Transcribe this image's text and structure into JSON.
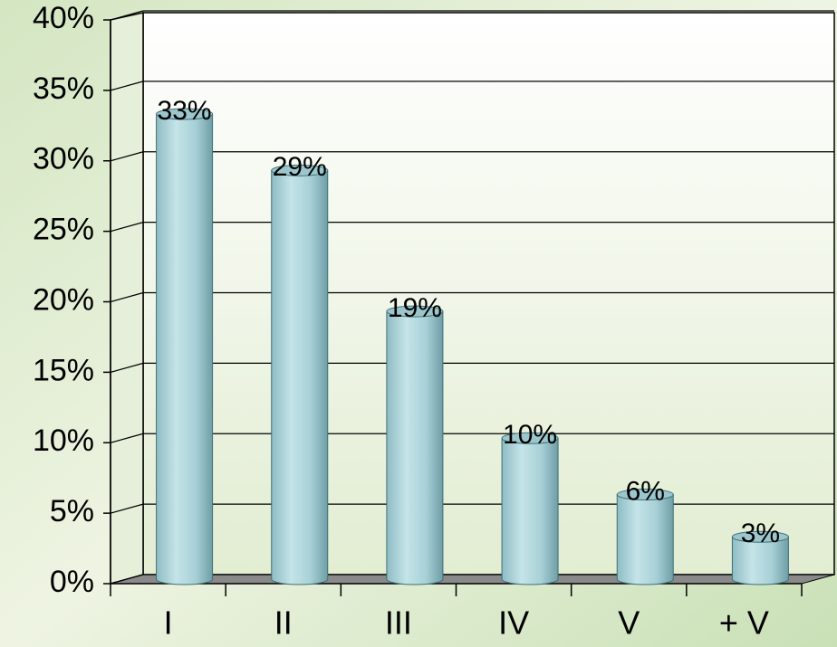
{
  "chart_data": {
    "type": "bar",
    "categories": [
      "I",
      "II",
      "III",
      "IV",
      "V",
      "+ V"
    ],
    "values": [
      33,
      29,
      19,
      10,
      6,
      3
    ],
    "value_labels": [
      "33%",
      "29%",
      "19%",
      "10%",
      "6%",
      "3%"
    ],
    "color": "#a9d3d9",
    "ylim": [
      0,
      40
    ],
    "yticks": [
      {
        "value": 0,
        "label": "0%"
      },
      {
        "value": 5,
        "label": "5%"
      },
      {
        "value": 10,
        "label": "10%"
      },
      {
        "value": 15,
        "label": "15%"
      },
      {
        "value": 20,
        "label": "20%"
      },
      {
        "value": 25,
        "label": "25%"
      },
      {
        "value": 30,
        "label": "30%"
      },
      {
        "value": 35,
        "label": "35%"
      },
      {
        "value": 40,
        "label": "40%"
      }
    ],
    "grid": true
  }
}
